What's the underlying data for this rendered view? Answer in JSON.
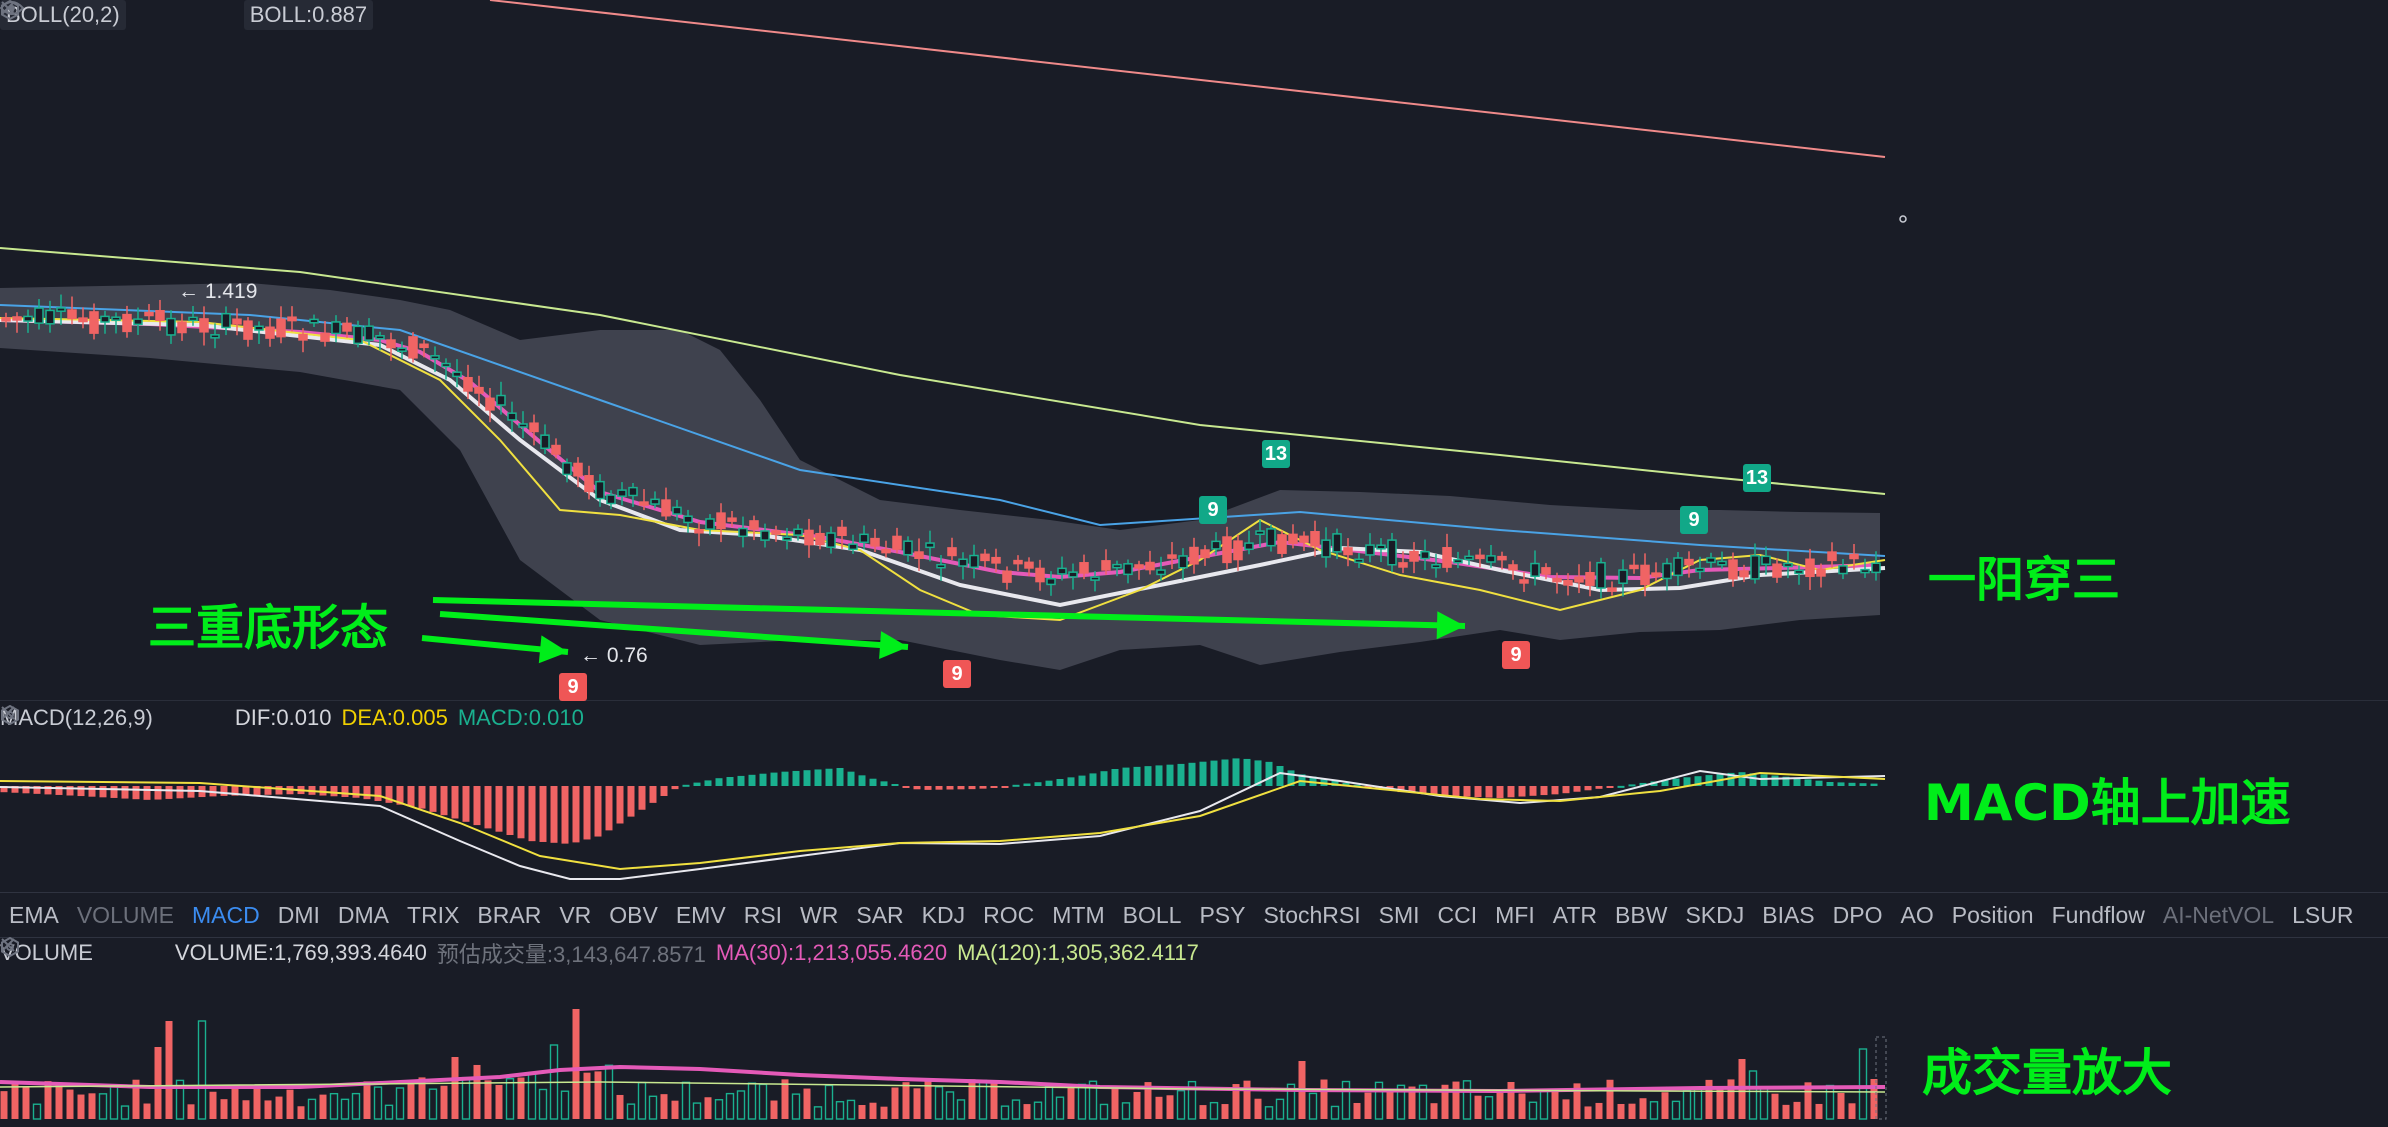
{
  "main": {
    "boll_name": "BOLL(20,2)",
    "boll_value": "BOLL:0.887",
    "high_label": "← 1.419",
    "low_label": "← 0.76",
    "td_badges": [
      "9",
      "13",
      "9",
      "13",
      "9",
      "9",
      "9"
    ]
  },
  "annotations": {
    "triple_bottom": "三重底形态",
    "one_yang_three": "一阳穿三",
    "macd_accel": "MACD轴上加速",
    "volume_up": "成交量放大"
  },
  "macd": {
    "name": "MACD(12,26,9)",
    "dif": "DIF:0.010",
    "dea": "DEA:0.005",
    "macd": "MACD:0.010"
  },
  "tabs": [
    "EMA",
    "VOLUME",
    "MACD",
    "DMI",
    "DMA",
    "TRIX",
    "BRAR",
    "VR",
    "OBV",
    "EMV",
    "RSI",
    "WR",
    "SAR",
    "KDJ",
    "ROC",
    "MTM",
    "BOLL",
    "PSY",
    "StochRSI",
    "SMI",
    "CCI",
    "MFI",
    "ATR",
    "BBW",
    "SKDJ",
    "BIAS",
    "DPO",
    "AO",
    "Position",
    "Fundflow",
    "AI-NetVOL",
    "LSUR"
  ],
  "active_tab": "MACD",
  "dim_tabs": [
    "VOLUME",
    "AI-NetVOL"
  ],
  "volume": {
    "name": "VOLUME",
    "value": "VOLUME:1,769,393.4640",
    "estimate": "预估成交量:3,143,647.8571",
    "ma30": "MA(30):1,213,055.4620",
    "ma120": "MA(120):1,305,362.4117"
  },
  "colors": {
    "up": "#1ab08f",
    "down": "#f06464",
    "ma_white": "#e8e8ee",
    "ma_pink": "#e45ab8",
    "ma_yellow": "#f0e040",
    "ma_blue": "#4aa3e6",
    "ma_lime": "#c8e890",
    "ma_salmon": "#f08a8a",
    "annotation": "#00ee1a",
    "dea_label": "#f0d000",
    "macd_label": "#1ab08f",
    "ma30_label": "#e45ab8",
    "ma120_label": "#c8e890"
  }
}
